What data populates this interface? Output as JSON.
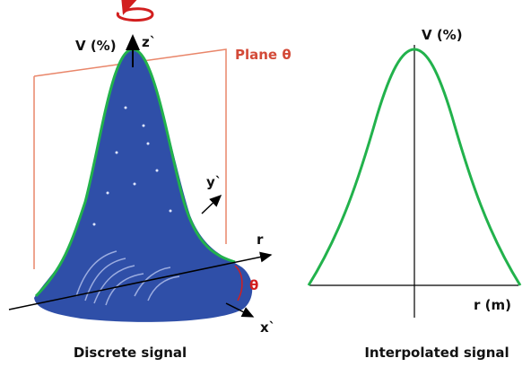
{
  "left_panel": {
    "axis_label": "V (%)",
    "z_label": "z`",
    "plane_label": "Plane θ",
    "y_label": "y`",
    "r_label": "r",
    "theta_label": "θ",
    "x_label": "x`",
    "caption": "Discrete signal"
  },
  "right_panel": {
    "axis_label": "V (%)",
    "r_label": "r (m)",
    "caption": "Interpolated signal"
  }
}
